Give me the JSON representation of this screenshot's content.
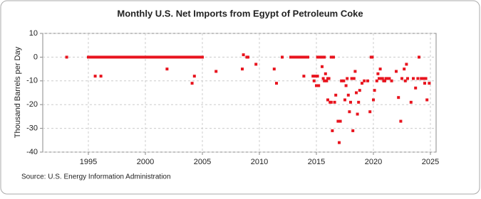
{
  "chart_data": {
    "type": "scatter",
    "title": "Monthly U.S. Net Imports from Egypt of Petroleum Coke",
    "y_label": "Thousand Barrels per Day",
    "source": "Source: U.S. Energy Information Administration",
    "color": "#e8141e",
    "grid": true,
    "xlim": [
      1991,
      2025.5
    ],
    "xticks": [
      1995,
      2000,
      2005,
      2010,
      2015,
      2020,
      2025
    ],
    "ylim": [
      -40,
      10
    ],
    "yticks": [
      -40,
      -30,
      -20,
      -10,
      0,
      10
    ],
    "x": [
      1993.1,
      1995,
      1995.25,
      1995.5,
      1995.75,
      1996,
      1996.25,
      1996.5,
      1996.75,
      1997,
      1997.25,
      1997.5,
      1997.75,
      1998,
      1998.25,
      1998.5,
      1998.75,
      1999,
      1999.25,
      1999.5,
      1999.75,
      2000,
      2000.25,
      2000.5,
      2000.75,
      2001,
      2001.25,
      2001.5,
      2001.75,
      2002,
      2002.25,
      2002.5,
      2002.75,
      2003,
      2003.25,
      2003.5,
      2003.75,
      2004,
      2004.25,
      2004.5,
      2004.75,
      2005,
      1995.6,
      1996.1,
      2001.9,
      2004.1,
      2004.3,
      2006.2,
      2008.5,
      2008.6,
      2008.9,
      2009.0,
      2009.7,
      2011.3,
      2011.5,
      2012.0,
      2012.75,
      2013,
      2013.25,
      2013.5,
      2013.75,
      2014,
      2014.25,
      2013.9,
      2014.7,
      2014.8,
      2014.9,
      2015.0,
      2015.1,
      2015.2,
      2015.1,
      2015.3,
      2015.5,
      2015.7,
      2015.5,
      2015.6,
      2015.7,
      2015.8,
      2015.9,
      2016.0,
      2016.0,
      2016.1,
      2016.2,
      2016.3,
      2016.4,
      2016.3,
      2016.5,
      2016.6,
      2016.7,
      2016.9,
      2017.0,
      2017.1,
      2017.2,
      2017.4,
      2017.5,
      2017.6,
      2017.7,
      2017.8,
      2017.9,
      2018.0,
      2018.1,
      2018.2,
      2018.3,
      2018.4,
      2018.5,
      2018.6,
      2018.7,
      2018.8,
      2019.0,
      2019.2,
      2019.5,
      2019.7,
      2019.8,
      2019.9,
      2020.0,
      2020.1,
      2020.3,
      2020.4,
      2020.5,
      2020.6,
      2020.7,
      2020.8,
      2020.9,
      2021.0,
      2021.1,
      2021.2,
      2021.4,
      2021.6,
      2022.0,
      2022.2,
      2022.4,
      2022.5,
      2022.7,
      2022.8,
      2022.9,
      2023.0,
      2023.3,
      2023.5,
      2023.7,
      2023.9,
      2024.0,
      2024.2,
      2024.4,
      2024.5,
      2024.6,
      2024.7,
      2024.9
    ],
    "values": [
      0,
      0,
      0,
      0,
      0,
      0,
      0,
      0,
      0,
      0,
      0,
      0,
      0,
      0,
      0,
      0,
      0,
      0,
      0,
      0,
      0,
      0,
      0,
      0,
      0,
      0,
      0,
      0,
      0,
      0,
      0,
      0,
      0,
      0,
      0,
      0,
      0,
      0,
      0,
      0,
      0,
      0,
      -8,
      -8,
      -5,
      -11,
      -8,
      -6,
      -5,
      1,
      0,
      0,
      -3,
      -5,
      -11,
      0,
      0,
      0,
      0,
      0,
      0,
      0,
      0,
      -8,
      -8,
      -10,
      -8,
      -12,
      -8,
      -12,
      0,
      0,
      0,
      0,
      -4,
      -9,
      -10,
      -7,
      -10,
      -9,
      -18,
      -9,
      -19,
      -19,
      -31,
      0,
      0,
      -19,
      -16,
      -27,
      -36,
      -27,
      -10,
      -10,
      -18,
      -12,
      -9,
      -16,
      -23,
      -19,
      -9,
      -31,
      -9,
      -6,
      -15,
      -24,
      -19,
      -14,
      -11,
      -10,
      -10,
      -23,
      0,
      0,
      -18,
      -14,
      -10,
      -7,
      -9,
      -5,
      -9,
      -9,
      -10,
      -10,
      -9,
      -9,
      -9,
      -10,
      -6,
      -17,
      -27,
      -9,
      -5,
      -10,
      -3,
      -9,
      -19,
      -9,
      -13,
      -9,
      0,
      -9,
      -9,
      -11,
      -9,
      -18,
      -11
    ]
  }
}
